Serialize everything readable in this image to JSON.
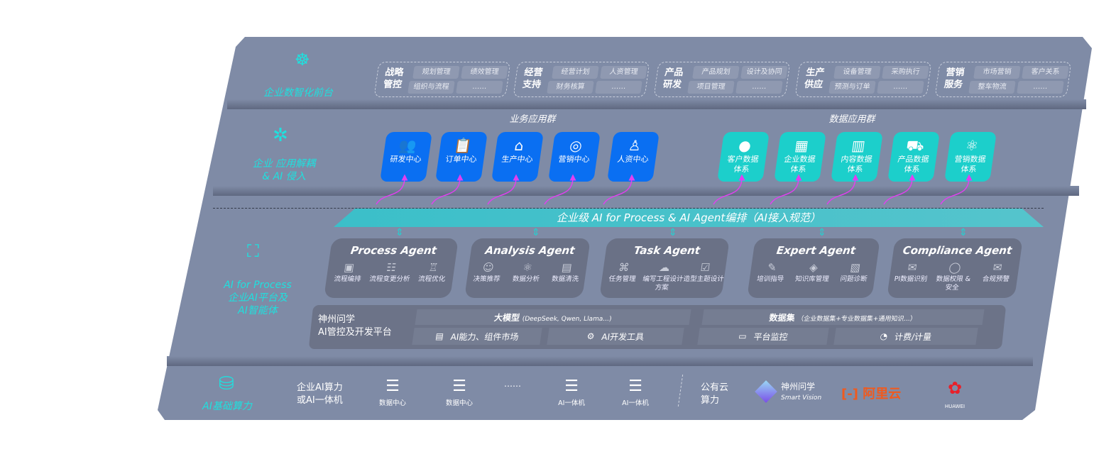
{
  "front": {
    "label": "企业数智化前台",
    "icon": "brain-icon",
    "groups": [
      {
        "title": "战略管控",
        "items": [
          "规划管理",
          "绩效管理",
          "组织与流程",
          "……"
        ]
      },
      {
        "title": "经营支持",
        "items": [
          "经营计划",
          "人资管理",
          "财务核算",
          "……"
        ]
      },
      {
        "title": "产品研发",
        "items": [
          "产品规划",
          "设计及协同",
          "项目管理",
          "……"
        ]
      },
      {
        "title": "生产供应",
        "items": [
          "设备管理",
          "采购执行",
          "预测与订单",
          "……"
        ]
      },
      {
        "title": "营销服务",
        "items": [
          "市场营销",
          "客户关系",
          "整车物流",
          "……"
        ]
      }
    ]
  },
  "apps": {
    "label_line1": "企业 应用解耦",
    "label_line2": "& AI 侵入",
    "icon": "molecule-icon",
    "business_title": "业务应用群",
    "business": [
      {
        "label": "研发中心",
        "icon": "users-icon"
      },
      {
        "label": "订单中心",
        "icon": "clipboard-icon"
      },
      {
        "label": "生产中心",
        "icon": "factory-icon"
      },
      {
        "label": "营销中心",
        "icon": "target-icon"
      },
      {
        "label": "人资中心",
        "icon": "person-icon"
      }
    ],
    "data_title": "数据应用群",
    "data": [
      {
        "label1": "客户数据",
        "label2": "体系",
        "icon": "user-icon"
      },
      {
        "label1": "企业数据",
        "label2": "体系",
        "icon": "building-icon"
      },
      {
        "label1": "内容数据",
        "label2": "体系",
        "icon": "books-icon"
      },
      {
        "label1": "产品数据",
        "label2": "体系",
        "icon": "car-icon"
      },
      {
        "label1": "营销数据",
        "label2": "体系",
        "icon": "atom-icon"
      }
    ],
    "colors": {
      "business": "#0a6ff2",
      "data": "#1ccfcb",
      "arrow": "#e040f0"
    }
  },
  "orchestration": {
    "banner": "企业级 AI for Process & AI Agent编排（AI接入规范）"
  },
  "ai": {
    "label_line1": "AI for Process",
    "label_line2": "企业AI平台及",
    "label_line3": "AI智能体",
    "icon": "face-scan-icon",
    "agents": [
      {
        "title": "Process Agent",
        "items": [
          "流程编排",
          "流程变更分析",
          "流程优化"
        ]
      },
      {
        "title": "Analysis Agent",
        "items": [
          "决策推荐",
          "数据分析",
          "数据清洗"
        ]
      },
      {
        "title": "Task Agent",
        "items": [
          "任务管理",
          "编写工程设计方案",
          "造型主题设计"
        ]
      },
      {
        "title": "Expert Agent",
        "items": [
          "培训指导",
          "知识库管理",
          "问题诊断"
        ]
      },
      {
        "title": "Compliance Agent",
        "items": [
          "PI数据识别",
          "数据权限 & 安全",
          "合规预警"
        ]
      }
    ],
    "platform": {
      "name_line1": "神州问学",
      "name_line2": "AI管控及开发平台",
      "model": "大模型",
      "model_note": "(DeepSeek, Qwen, Llama...)",
      "dataset": "数据集",
      "dataset_note": "（企业数据集+专业数据集+通用知识...）",
      "tools": [
        "AI能力、组件市场",
        "AI开发工具",
        "平台监控",
        "计费/计量"
      ]
    }
  },
  "compute": {
    "label": "AI基础算力",
    "icon": "database-icon",
    "enterprise_line1": "企业AI算力",
    "enterprise_line2": "或AI一体机",
    "servers": [
      "数据中心",
      "数据中心",
      "AI一体机",
      "AI一体机"
    ],
    "ellipsis": "……",
    "public_line1": "公有云",
    "public_line2": "算力",
    "vendors": {
      "shenzhou_cn": "神州问学",
      "shenzhou_en": "Smart Vision",
      "aliyun": "阿里云",
      "huawei": "HUAWEI"
    },
    "colors": {
      "aliyun": "#f05a1e",
      "huawei": "#e8202a"
    }
  }
}
